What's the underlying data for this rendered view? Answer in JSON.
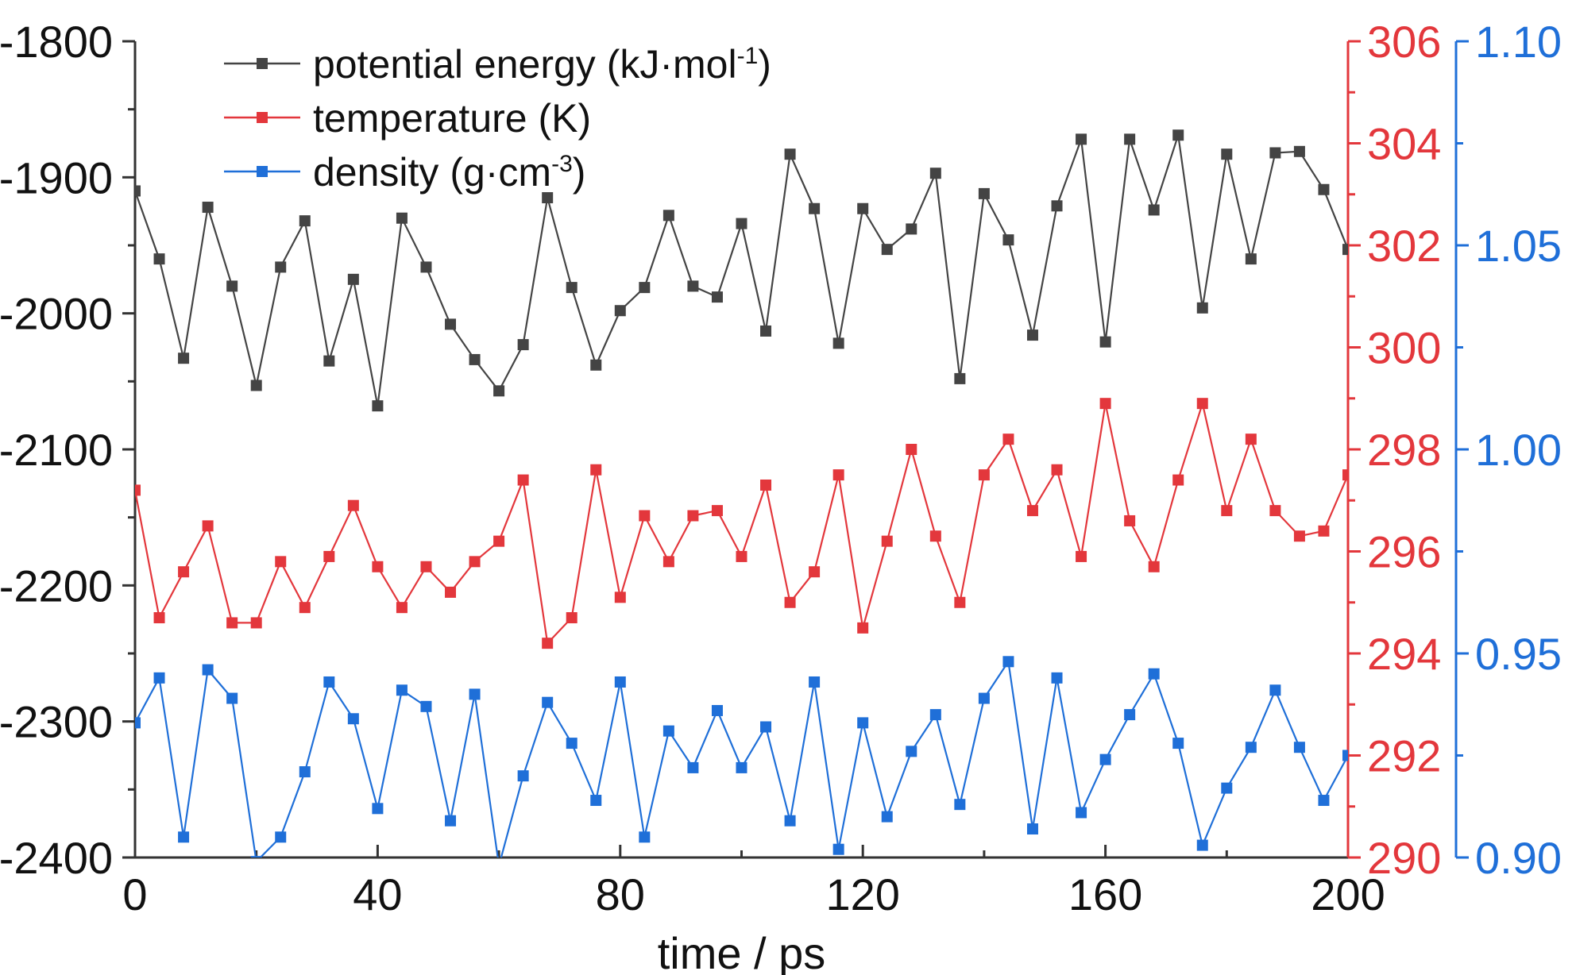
{
  "chart_data": {
    "type": "line",
    "xlabel": "time / ps",
    "xlim": [
      0,
      200
    ],
    "xticks": [
      "0",
      "40",
      "80",
      "120",
      "160",
      "200"
    ],
    "colors": {
      "potential": "#444444",
      "temperature": "#e3373c",
      "density": "#1f6fd8"
    },
    "axes": {
      "left": {
        "series": "potential",
        "ylim": [
          -2400,
          -1800
        ],
        "ticks": [
          "-1800",
          "-1900",
          "-2000",
          "-2100",
          "-2200",
          "-2300",
          "-2400"
        ],
        "ticks_values": [
          -1800,
          -1900,
          -2000,
          -2100,
          -2200,
          -2300,
          -2400
        ]
      },
      "right1": {
        "series": "temperature",
        "ylim": [
          290,
          306
        ],
        "ticks": [
          "306",
          "304",
          "302",
          "300",
          "298",
          "296",
          "294",
          "292",
          "290"
        ],
        "ticks_values": [
          306,
          304,
          302,
          300,
          298,
          296,
          294,
          292,
          290
        ]
      },
      "right2": {
        "series": "density",
        "ylim": [
          0.9,
          1.1
        ],
        "ticks": [
          "1.10",
          "1.05",
          "1.00",
          "0.95",
          "0.90"
        ],
        "ticks_values": [
          1.1,
          1.05,
          1.0,
          0.95,
          0.9
        ]
      }
    },
    "legend": {
      "position": "top-left",
      "entries": [
        {
          "key": "potential",
          "name": "potential energy (kJ·mol",
          "sup": "-1",
          "tail": ")"
        },
        {
          "key": "temperature",
          "name": "temperature (K)",
          "sup": "",
          "tail": ""
        },
        {
          "key": "density",
          "name": "density (g·cm",
          "sup": "-3",
          "tail": ")"
        }
      ]
    },
    "x": [
      0,
      4,
      8,
      12,
      16,
      20,
      24,
      28,
      32,
      36,
      40,
      44,
      48,
      52,
      56,
      60,
      64,
      68,
      72,
      76,
      80,
      84,
      88,
      92,
      96,
      100,
      104,
      108,
      112,
      116,
      120,
      124,
      128,
      132,
      136,
      140,
      144,
      148,
      152,
      156,
      160,
      164,
      168,
      172,
      176,
      180,
      184,
      188,
      192,
      196,
      200
    ],
    "series": [
      {
        "key": "potential",
        "axis": "left",
        "name": "potential energy",
        "values": [
          -1910,
          -1960,
          -2033,
          -1922,
          -1980,
          -2053,
          -1966,
          -1932,
          -2035,
          -1975,
          -2068,
          -1930,
          -1966,
          -2008,
          -2034,
          -2057,
          -2023,
          -1915,
          -1981,
          -2038,
          -1998,
          -1981,
          -1928,
          -1980,
          -1988,
          -1934,
          -2013,
          -1883,
          -1923,
          -2022,
          -1923,
          -1953,
          -1938,
          -1897,
          -2048,
          -1912,
          -1946,
          -2016,
          -1921,
          -1872,
          -2021,
          -1872,
          -1924,
          -1869,
          -1996,
          -1883,
          -1960,
          -1882,
          -1881,
          -1909,
          -1953
        ]
      },
      {
        "key": "temperature",
        "axis": "right1",
        "name": "temperature",
        "values": [
          297.2,
          294.7,
          295.6,
          296.5,
          294.6,
          294.6,
          295.8,
          294.9,
          295.9,
          296.9,
          295.7,
          294.9,
          295.7,
          295.2,
          295.8,
          296.2,
          297.4,
          294.2,
          294.7,
          297.6,
          295.1,
          296.7,
          295.8,
          296.7,
          296.8,
          295.9,
          297.3,
          295.0,
          295.6,
          297.5,
          294.5,
          296.2,
          298.0,
          296.3,
          295.0,
          297.5,
          298.2,
          296.8,
          297.6,
          295.9,
          298.9,
          296.6,
          295.7,
          297.4,
          298.9,
          296.8,
          298.2,
          296.8,
          296.3,
          296.4,
          297.5
        ]
      },
      {
        "key": "density",
        "axis": "right2",
        "name": "density",
        "values": [
          0.933,
          0.944,
          0.905,
          0.946,
          0.939,
          0.899,
          0.905,
          0.921,
          0.943,
          0.934,
          0.912,
          0.941,
          0.937,
          0.909,
          0.94,
          0.898,
          0.92,
          0.938,
          0.928,
          0.914,
          0.943,
          0.905,
          0.931,
          0.922,
          0.936,
          0.922,
          0.932,
          0.909,
          0.943,
          0.902,
          0.933,
          0.91,
          0.926,
          0.935,
          0.913,
          0.939,
          0.948,
          0.907,
          0.944,
          0.911,
          0.924,
          0.935,
          0.945,
          0.928,
          0.903,
          0.917,
          0.927,
          0.941,
          0.927,
          0.914,
          0.925
        ]
      }
    ]
  }
}
